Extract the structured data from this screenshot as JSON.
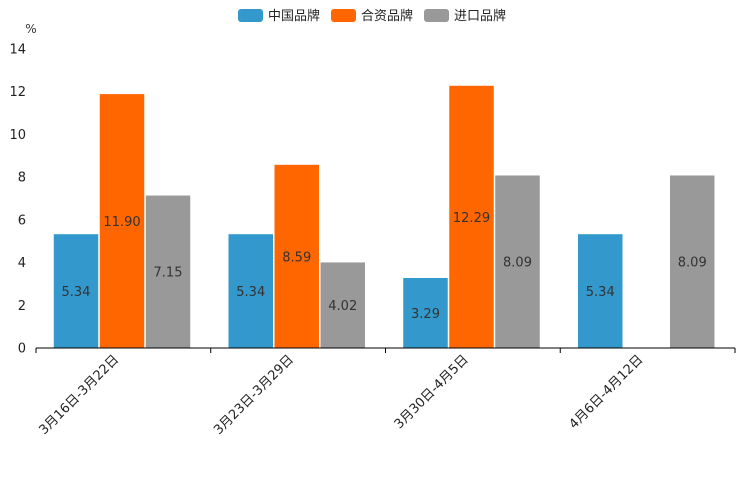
{
  "chart_data": {
    "type": "bar",
    "ylabel": "%",
    "ylim": [
      0,
      14
    ],
    "yticks": [
      0,
      2,
      4,
      6,
      8,
      10,
      12,
      14
    ],
    "grid": false,
    "legend_position": "top-center",
    "categories": [
      "3月16日-3月22日",
      "3月23日-3月29日",
      "3月30日-4月5日",
      "4月6日-4月12日"
    ],
    "series": [
      {
        "name": "中国品牌",
        "color": "#3399cc",
        "values": [
          5.34,
          5.34,
          3.29,
          5.34
        ],
        "labels": [
          "5.34",
          "5.34",
          "3.29",
          "5.34"
        ]
      },
      {
        "name": "合资品牌",
        "color": "#ff6600",
        "values": [
          11.9,
          8.59,
          12.29,
          null
        ],
        "labels": [
          "11.90",
          "8.59",
          "12.29",
          null
        ]
      },
      {
        "name": "进口品牌",
        "color": "#999999",
        "values": [
          7.15,
          4.02,
          8.09,
          8.09
        ],
        "labels": [
          "7.15",
          "4.02",
          "8.09",
          "8.09"
        ]
      }
    ]
  }
}
